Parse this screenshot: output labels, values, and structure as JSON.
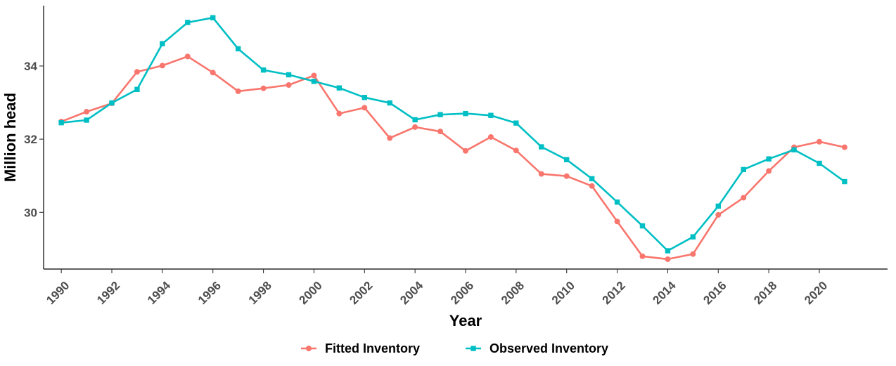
{
  "chart_data": {
    "type": "line",
    "title": "",
    "xlabel": "Year",
    "ylabel": "Million head",
    "xlim": [
      1989.3,
      2022.7
    ],
    "ylim": [
      28.45,
      35.65
    ],
    "x_ticks": [
      1990,
      1992,
      1994,
      1996,
      1998,
      2000,
      2002,
      2004,
      2006,
      2008,
      2010,
      2012,
      2014,
      2016,
      2018,
      2020
    ],
    "y_ticks": [
      30,
      32,
      34
    ],
    "grid": false,
    "legend_position": "bottom",
    "x": [
      1990,
      1991,
      1992,
      1993,
      1994,
      1995,
      1996,
      1997,
      1998,
      1999,
      2000,
      2001,
      2002,
      2003,
      2004,
      2005,
      2006,
      2007,
      2008,
      2009,
      2010,
      2011,
      2012,
      2013,
      2014,
      2015,
      2016,
      2017,
      2018,
      2019,
      2020,
      2021
    ],
    "series": [
      {
        "name": "Fitted Inventory",
        "color": "#F8766D",
        "marker": "circle",
        "values": [
          32.48,
          32.75,
          32.98,
          33.84,
          34.01,
          34.26,
          33.82,
          33.31,
          33.39,
          33.48,
          33.74,
          32.7,
          32.86,
          32.03,
          32.33,
          32.21,
          31.68,
          32.06,
          31.69,
          31.05,
          30.99,
          30.72,
          29.75,
          28.8,
          28.72,
          28.86,
          29.93,
          30.4,
          31.13,
          31.78,
          31.93,
          31.78
        ]
      },
      {
        "name": "Observed Inventory",
        "color": "#00BFC4",
        "marker": "square",
        "values": [
          32.45,
          32.52,
          32.99,
          33.36,
          34.61,
          35.19,
          35.32,
          34.47,
          33.89,
          33.76,
          33.58,
          33.4,
          33.14,
          32.99,
          32.53,
          32.67,
          32.7,
          32.65,
          32.44,
          31.79,
          31.44,
          30.92,
          30.28,
          29.63,
          28.95,
          29.33,
          30.17,
          31.17,
          31.46,
          31.71,
          31.34,
          30.84
        ]
      }
    ]
  }
}
